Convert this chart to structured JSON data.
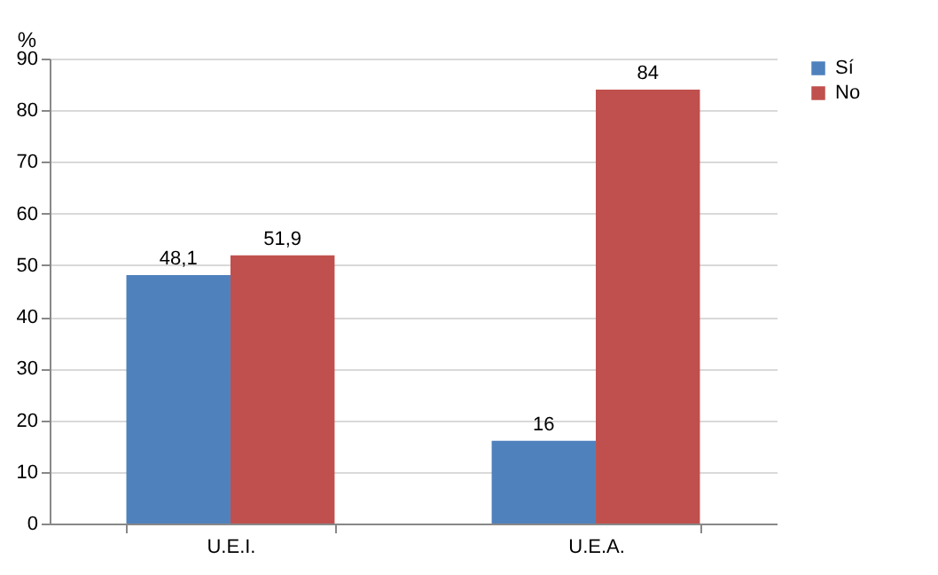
{
  "chart_data": {
    "type": "bar",
    "ylabel": "%",
    "categories": [
      "U.E.I.",
      "U.E.A."
    ],
    "series": [
      {
        "name": "Sí",
        "color": "#4f81bd",
        "values": [
          48.1,
          16
        ],
        "value_labels": [
          "48,1",
          "16"
        ]
      },
      {
        "name": "No",
        "color": "#c0504d",
        "values": [
          51.9,
          84
        ],
        "value_labels": [
          "51,9",
          "84"
        ]
      }
    ],
    "ylim": [
      0,
      90
    ],
    "yticks": [
      0,
      10,
      20,
      30,
      40,
      50,
      60,
      70,
      80,
      90
    ],
    "grid": "y",
    "legend": "right"
  }
}
